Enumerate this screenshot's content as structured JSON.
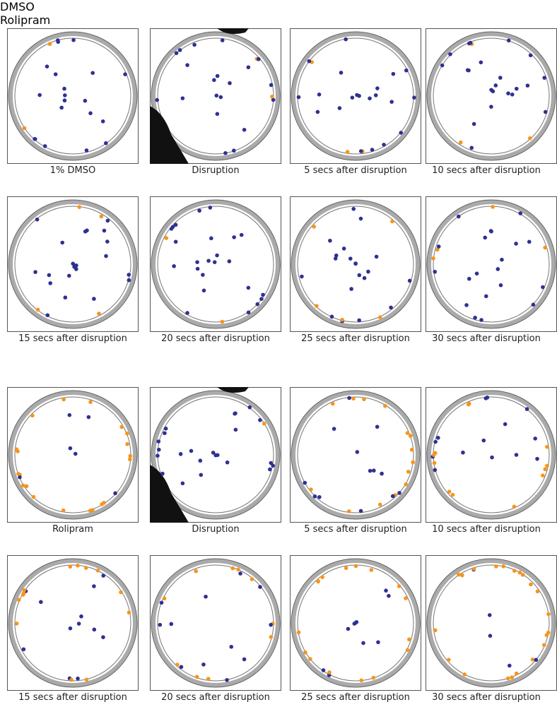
{
  "sections": [
    {
      "title": "DMSO",
      "panels": [
        "1% DMSO",
        "Disruption",
        "5 secs after disruption",
        "10 secs after disruption",
        "15 secs after disruption",
        "20 secs after disruption",
        "25 secs after disruption",
        "30 secs after disruption"
      ]
    },
    {
      "title": "Rolipram",
      "panels": [
        "Rolipram",
        "Disruption",
        "5 secs after disruption",
        "10 secs after disruption",
        "15 secs after disruption",
        "20 secs after disruption",
        "25 secs after disruption",
        "30 secs after disruption"
      ]
    }
  ]
}
